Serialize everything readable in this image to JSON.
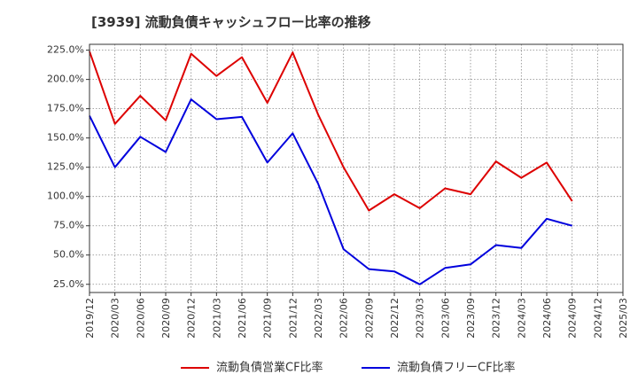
{
  "chart_data": {
    "type": "line",
    "title": "[3939]  流動負債キャッシュフロー比率の推移",
    "x": [
      "2019/12",
      "2020/03",
      "2020/06",
      "2020/09",
      "2020/12",
      "2021/03",
      "2021/06",
      "2021/09",
      "2021/12",
      "2022/03",
      "2022/06",
      "2022/09",
      "2022/12",
      "2023/03",
      "2023/06",
      "2023/09",
      "2023/12",
      "2024/03",
      "2024/06",
      "2024/09",
      "2024/12",
      "2025/03"
    ],
    "y_ticks": [
      "25.0%",
      "50.0%",
      "75.0%",
      "100.0%",
      "125.0%",
      "150.0%",
      "175.0%",
      "200.0%",
      "225.0%"
    ],
    "ylim": [
      18,
      230
    ],
    "xlabel": "",
    "ylabel": "",
    "grid": true,
    "legend_position": "bottom",
    "series": [
      {
        "name": "流動負債営業CF比率",
        "color": "#dd0000",
        "values": [
          224.0,
          162.0,
          186.0,
          165.0,
          222.0,
          203.0,
          219.0,
          180.0,
          223.0,
          170.0,
          125.0,
          88.0,
          102.0,
          90.0,
          107.0,
          102.0,
          130.0,
          116.0,
          129.0,
          96.0,
          null,
          null
        ]
      },
      {
        "name": "流動負債フリーCF比率",
        "color": "#0000dd",
        "values": [
          169.0,
          125.0,
          151.0,
          138.0,
          183.0,
          166.0,
          168.0,
          129.0,
          154.0,
          111.0,
          55.0,
          38.0,
          36.0,
          25.0,
          39.0,
          42.0,
          58.5,
          56.0,
          81.0,
          75.0,
          null,
          null
        ]
      }
    ]
  }
}
